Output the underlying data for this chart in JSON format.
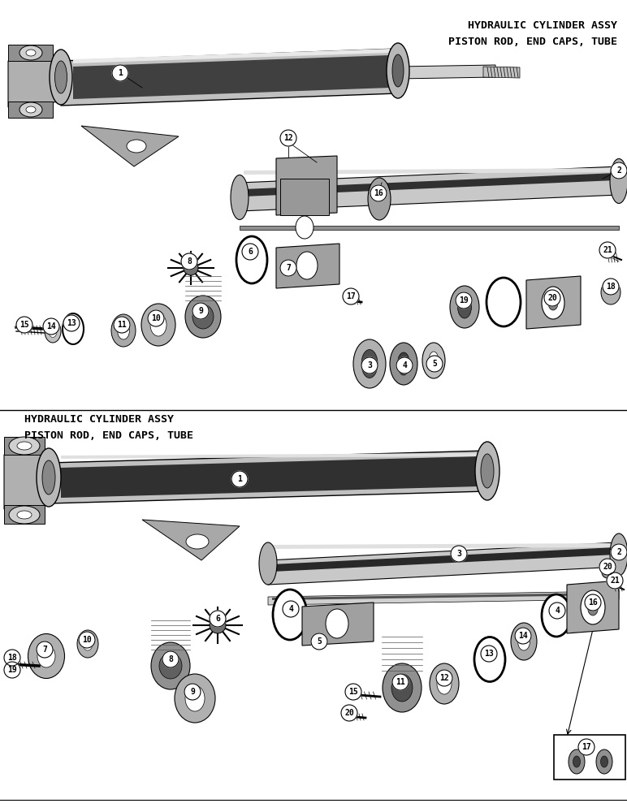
{
  "background_color": "#ffffff",
  "top_title_line1": "HYDRAULIC CYLINDER ASSY",
  "top_title_line2": "PISTON ROD, END CAPS, TUBE",
  "bottom_title_line1": "HYDRAULIC CYLINDER ASSY",
  "bottom_title_line2": "PISTON ROD, END CAPS, TUBE",
  "line_color": "#000000",
  "text_color": "#000000",
  "fig_width": 7.72,
  "fig_height": 10.0,
  "dpi": 100
}
